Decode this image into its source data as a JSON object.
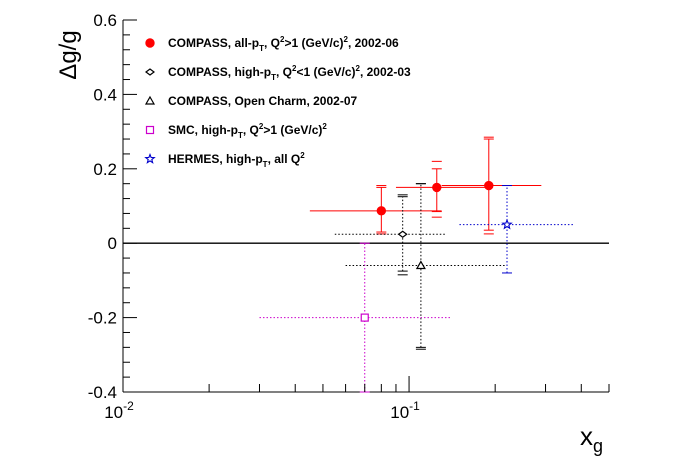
{
  "chart_data": {
    "type": "scatter",
    "title": "",
    "xlabel": "x",
    "xlabel_sub": "g",
    "ylabel": "Δg/g",
    "x_scale": "log",
    "xlim": [
      0.01,
      0.5
    ],
    "ylim": [
      -0.4,
      0.6
    ],
    "grid": false,
    "legend_position": "top-left",
    "zero_line": 0,
    "y_ticks": [
      {
        "value": -0.4,
        "label": "-0.4"
      },
      {
        "value": -0.2,
        "label": "-0.2"
      },
      {
        "value": 0,
        "label": "0"
      },
      {
        "value": 0.2,
        "label": "0.2"
      },
      {
        "value": 0.4,
        "label": "0.4"
      },
      {
        "value": 0.6,
        "label": "0.6"
      }
    ],
    "x_ticks": [
      {
        "value": 0.01,
        "base": "10",
        "exp": "-2"
      },
      {
        "value": 0.1,
        "base": "10",
        "exp": "-1"
      }
    ],
    "series": [
      {
        "name": "COMPASS, all-pT, Q2>1 (GeV/c)2, 2002-06",
        "legend": [
          {
            "t": "COMPASS, all-p"
          },
          {
            "t": "T",
            "s": "sub"
          },
          {
            "t": ", Q"
          },
          {
            "t": "2",
            "s": "sup"
          },
          {
            "t": ">1 (GeV/c)"
          },
          {
            "t": "2",
            "s": "sup"
          },
          {
            "t": ", 2002-06"
          }
        ],
        "marker": "filled-circle",
        "color": "#ff0000",
        "line_style": "solid",
        "points": [
          {
            "x": 0.08,
            "y": 0.087,
            "xlo": 0.045,
            "xhi": 0.13,
            "ylo": 0.03,
            "yhi": 0.15,
            "ylo2": 0.025,
            "yhi2": 0.155
          },
          {
            "x": 0.125,
            "y": 0.15,
            "xlo": 0.09,
            "xhi": 0.185,
            "ylo": 0.085,
            "yhi": 0.2,
            "ylo2": 0.07,
            "yhi2": 0.22
          },
          {
            "x": 0.19,
            "y": 0.155,
            "xlo": 0.13,
            "xhi": 0.29,
            "ylo": 0.035,
            "yhi": 0.28,
            "ylo2": 0.025,
            "yhi2": 0.285
          }
        ]
      },
      {
        "name": "COMPASS, high-pT, Q2<1 (GeV/c)2, 2002-03",
        "legend": [
          {
            "t": "COMPASS, high-p"
          },
          {
            "t": "T",
            "s": "sub"
          },
          {
            "t": ", Q"
          },
          {
            "t": "2",
            "s": "sup"
          },
          {
            "t": "<1 (GeV/c)"
          },
          {
            "t": "2",
            "s": "sup"
          },
          {
            "t": ", 2002-03"
          }
        ],
        "marker": "open-diamond",
        "color": "#000000",
        "line_style": "dotted",
        "points": [
          {
            "x": 0.095,
            "y": 0.024,
            "xlo": 0.055,
            "xhi": 0.135,
            "ylo": -0.075,
            "yhi": 0.125,
            "ylo2": -0.085,
            "yhi2": 0.13
          }
        ]
      },
      {
        "name": "COMPASS, Open Charm, 2002-07",
        "legend": [
          {
            "t": "COMPASS, Open Charm, 2002-07"
          }
        ],
        "marker": "open-triangle",
        "color": "#000000",
        "line_style": "dotted",
        "points": [
          {
            "x": 0.11,
            "y": -0.06,
            "xlo": 0.06,
            "xhi": 0.22,
            "ylo": -0.28,
            "yhi": 0.16,
            "ylo2": -0.285,
            "yhi2": 0.16
          }
        ]
      },
      {
        "name": "SMC, high-pT, Q2>1 (GeV/c)2",
        "legend": [
          {
            "t": "SMC, high-p"
          },
          {
            "t": "T",
            "s": "sub"
          },
          {
            "t": ", Q"
          },
          {
            "t": "2",
            "s": "sup"
          },
          {
            "t": ">1 (GeV/c)"
          },
          {
            "t": "2",
            "s": "sup"
          }
        ],
        "marker": "open-square",
        "color": "#cc00cc",
        "line_style": "dotted",
        "points": [
          {
            "x": 0.07,
            "y": -0.2,
            "xlo": 0.03,
            "xhi": 0.14,
            "ylo": -0.4,
            "yhi": 0.0
          }
        ]
      },
      {
        "name": "HERMES, high-pT, all Q2",
        "legend": [
          {
            "t": "HERMES, high-p"
          },
          {
            "t": "T",
            "s": "sub"
          },
          {
            "t": ", all Q"
          },
          {
            "t": "2",
            "s": "sup"
          }
        ],
        "marker": "open-star",
        "color": "#0000cc",
        "line_style": "dotted",
        "points": [
          {
            "x": 0.22,
            "y": 0.05,
            "xlo": 0.15,
            "xhi": 0.38,
            "ylo": -0.08,
            "yhi": 0.155
          }
        ]
      }
    ]
  }
}
